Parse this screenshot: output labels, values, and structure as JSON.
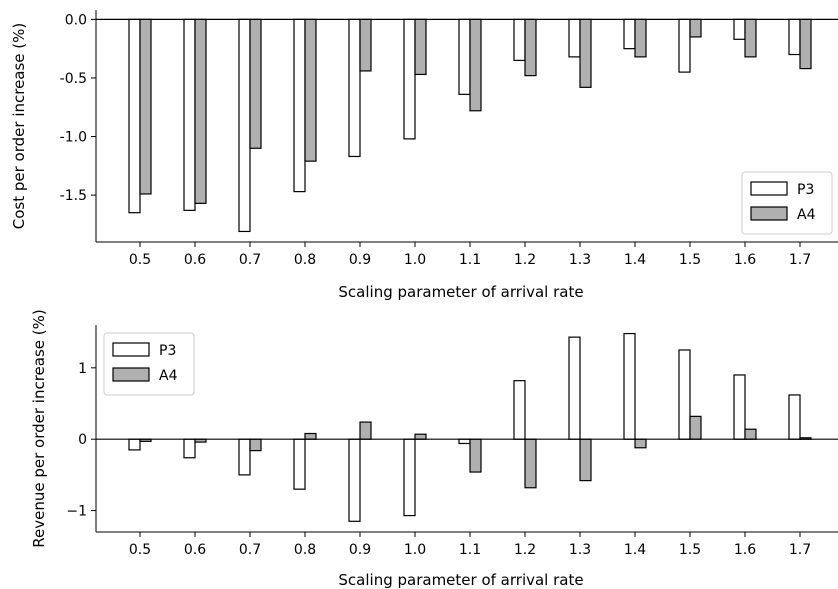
{
  "chart_data": [
    {
      "type": "bar",
      "title": "",
      "xlabel": "Scaling parameter of arrival rate",
      "ylabel": "Cost per order increase (%)",
      "categories": [
        "0.5",
        "0.6",
        "0.7",
        "0.8",
        "0.9",
        "1.0",
        "1.1",
        "1.2",
        "1.3",
        "1.4",
        "1.5",
        "1.6",
        "1.7"
      ],
      "ylim": [
        -1.9,
        0.08
      ],
      "yticks": [
        "0.0",
        "-0.5",
        "-1.0",
        "-1.5"
      ],
      "yticks_values": [
        0.0,
        -0.5,
        -1.0,
        -1.5
      ],
      "legend_position": "lower-right",
      "series": [
        {
          "name": "P3",
          "color": "#ffffff",
          "values": [
            -1.65,
            -1.63,
            -1.81,
            -1.47,
            -1.17,
            -1.02,
            -0.64,
            -0.35,
            -0.32,
            -0.25,
            -0.45,
            -0.17,
            -0.3
          ]
        },
        {
          "name": "A4",
          "color": "#b0b0b0",
          "values": [
            -1.49,
            -1.57,
            -1.1,
            -1.21,
            -0.44,
            -0.47,
            -0.78,
            -0.48,
            -0.58,
            -0.32,
            -0.15,
            -0.32,
            -0.42
          ]
        }
      ]
    },
    {
      "type": "bar",
      "title": "",
      "xlabel": "Scaling parameter of arrival rate",
      "ylabel": "Revenue per order increase (%)",
      "categories": [
        "0.5",
        "0.6",
        "0.7",
        "0.8",
        "0.9",
        "1.0",
        "1.1",
        "1.2",
        "1.3",
        "1.4",
        "1.5",
        "1.6",
        "1.7"
      ],
      "ylim": [
        -1.3,
        1.6
      ],
      "yticks": [
        "1",
        "0",
        "−1"
      ],
      "yticks_values": [
        1,
        0,
        -1
      ],
      "legend_position": "upper-left",
      "series": [
        {
          "name": "P3",
          "color": "#ffffff",
          "values": [
            -0.15,
            -0.26,
            -0.5,
            -0.7,
            -1.15,
            -1.07,
            -0.06,
            0.82,
            1.43,
            1.48,
            1.25,
            0.9,
            0.62
          ]
        },
        {
          "name": "A4",
          "color": "#b0b0b0",
          "values": [
            -0.03,
            -0.04,
            -0.16,
            0.08,
            0.24,
            0.07,
            -0.46,
            -0.68,
            -0.58,
            -0.12,
            0.32,
            0.14,
            0.02
          ]
        }
      ]
    }
  ]
}
